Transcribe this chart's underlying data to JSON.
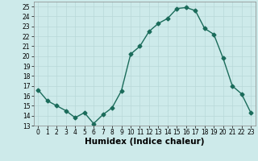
{
  "x": [
    0,
    1,
    2,
    3,
    4,
    5,
    6,
    7,
    8,
    9,
    10,
    11,
    12,
    13,
    14,
    15,
    16,
    17,
    18,
    19,
    20,
    21,
    22,
    23
  ],
  "y": [
    16.6,
    15.5,
    15.0,
    14.5,
    13.8,
    14.3,
    13.2,
    14.1,
    14.8,
    16.5,
    20.2,
    21.0,
    22.5,
    23.3,
    23.8,
    24.8,
    24.9,
    24.6,
    22.8,
    22.2,
    19.8,
    17.0,
    16.2,
    14.3
  ],
  "line_color": "#1a6b5a",
  "marker": "D",
  "marker_size": 2.5,
  "xlabel": "Humidex (Indice chaleur)",
  "xlim": [
    -0.5,
    23.5
  ],
  "ylim": [
    13,
    25.5
  ],
  "yticks": [
    13,
    14,
    15,
    16,
    17,
    18,
    19,
    20,
    21,
    22,
    23,
    24,
    25
  ],
  "xticks": [
    0,
    1,
    2,
    3,
    4,
    5,
    6,
    7,
    8,
    9,
    10,
    11,
    12,
    13,
    14,
    15,
    16,
    17,
    18,
    19,
    20,
    21,
    22,
    23
  ],
  "bg_color": "#cdeaea",
  "grid_color": "#b8d8d8",
  "tick_label_fontsize": 5.5,
  "xlabel_fontsize": 7.5,
  "line_width": 1.0
}
